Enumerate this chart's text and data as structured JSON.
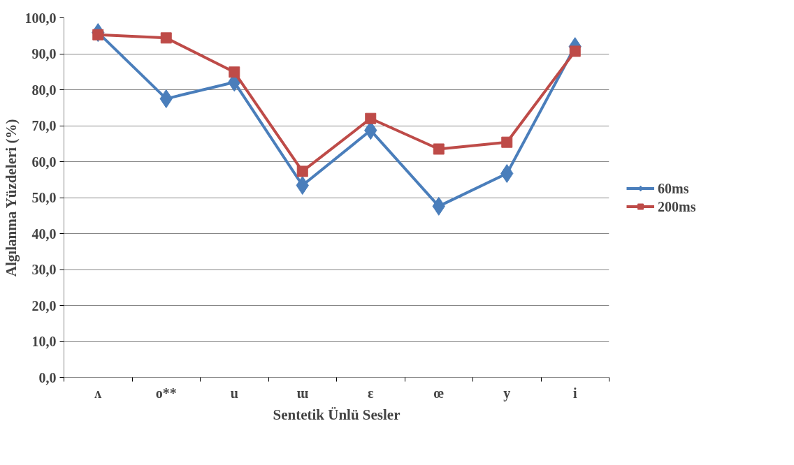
{
  "chart_data": {
    "type": "line",
    "xlabel": "Sentetik Ünlü Sesler",
    "ylabel": "Algılanma Yüzdeleri (%)",
    "categories": [
      "ʌ",
      "o**",
      "u",
      "ɯ",
      "ɛ",
      "œ",
      "y",
      "i"
    ],
    "series": [
      {
        "name": "60ms",
        "color": "#4a7ebb",
        "marker": "diamond",
        "values": [
          95.9,
          77.5,
          82.1,
          53.4,
          68.7,
          47.6,
          56.7,
          92.0
        ]
      },
      {
        "name": "200ms",
        "color": "#be4b48",
        "marker": "square",
        "values": [
          95.3,
          94.4,
          84.9,
          57.3,
          72.0,
          63.5,
          65.4,
          90.7
        ]
      }
    ],
    "ylim": [
      0,
      100
    ],
    "yticks": [
      {
        "value": 0,
        "label": "0,0"
      },
      {
        "value": 10,
        "label": "10,0"
      },
      {
        "value": 20,
        "label": "20,0"
      },
      {
        "value": 30,
        "label": "30,0"
      },
      {
        "value": 40,
        "label": "40,0"
      },
      {
        "value": 50,
        "label": "50,0"
      },
      {
        "value": 60,
        "label": "60,0"
      },
      {
        "value": 70,
        "label": "70,0"
      },
      {
        "value": 80,
        "label": "80,0"
      },
      {
        "value": 90,
        "label": "90,0"
      },
      {
        "value": 100,
        "label": "100,0"
      }
    ],
    "grid": "y",
    "legend": "right",
    "line_style": "solid"
  }
}
